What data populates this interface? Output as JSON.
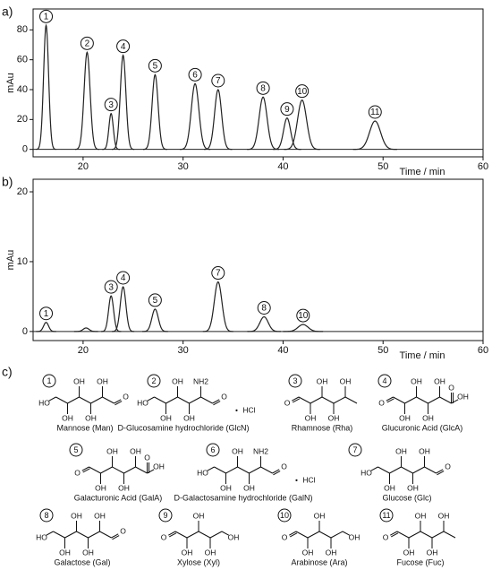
{
  "chart_data": [
    {
      "type": "line",
      "title": "a)",
      "x_label": "Time / min",
      "y_label": "mAu",
      "color": "#222222",
      "xlim": [
        15,
        60
      ],
      "xticks": [
        20,
        30,
        40,
        50,
        60
      ],
      "ylim": [
        -5,
        94
      ],
      "yticks": [
        0,
        20,
        40,
        60,
        80
      ],
      "peaks": {
        "labels": [
          "1",
          "2",
          "3",
          "4",
          "5",
          "6",
          "7",
          "8",
          "9",
          "10",
          "11"
        ],
        "x": [
          16.3,
          20.4,
          22.8,
          24.0,
          27.2,
          31.2,
          33.5,
          38.0,
          40.4,
          41.9,
          49.2
        ],
        "values": [
          83,
          65,
          24,
          63,
          50,
          44,
          40,
          35,
          21,
          33,
          19
        ],
        "widths": [
          0.25,
          0.3,
          0.22,
          0.28,
          0.3,
          0.38,
          0.35,
          0.4,
          0.35,
          0.45,
          0.55
        ]
      }
    },
    {
      "type": "line",
      "title": "b)",
      "x_label": "Time / min",
      "y_label": "mAu",
      "color": "#222222",
      "xlim": [
        15,
        60
      ],
      "xticks": [
        20,
        30,
        40,
        50,
        60
      ],
      "ylim": [
        -1.3,
        21.8
      ],
      "yticks": [
        0,
        10,
        20
      ],
      "peaks": {
        "labels": [
          "1",
          null,
          "3",
          "4",
          "5",
          "7",
          "8",
          "10"
        ],
        "x": [
          16.3,
          20.3,
          22.8,
          24.0,
          27.2,
          33.5,
          38.1,
          42.0
        ],
        "values": [
          1.3,
          0.5,
          5.1,
          6.4,
          3.2,
          7.1,
          2.1,
          1.0
        ],
        "widths": [
          0.25,
          0.3,
          0.25,
          0.28,
          0.32,
          0.38,
          0.42,
          0.5
        ]
      }
    }
  ],
  "structures": {
    "title": "c)",
    "compounds": [
      {
        "number": "1",
        "name": "Mannose (Man)",
        "left": "HO",
        "subs": [
          "OH",
          "OH",
          "OH",
          "OH"
        ],
        "right": [
          "O"
        ]
      },
      {
        "number": "2",
        "name": "D-Glucosamine hydrochloride (GlcN)",
        "left": "HO",
        "subs": [
          "OH",
          "OH",
          "OH",
          "NH2"
        ],
        "right": [
          "O"
        ],
        "salt": [
          "•",
          "HCl"
        ]
      },
      {
        "number": "3",
        "name": "Rhamnose (Rha)",
        "left": "O",
        "subs": [
          "OH",
          "OH",
          "OH",
          "OH"
        ]
      },
      {
        "number": "4",
        "name": "Glucuronic Acid (GlcA)",
        "left": "O",
        "subs": [
          "OH",
          "OH",
          "OH",
          "OH"
        ],
        "right": [
          "O",
          "OH"
        ]
      },
      {
        "number": "5",
        "name": "Galacturonic Acid (GalA)",
        "left": "O",
        "subs": [
          "OH",
          "OH",
          "OH",
          "OH"
        ],
        "right": [
          "O",
          "OH"
        ]
      },
      {
        "number": "6",
        "name": "D-Galactosamine hydrochloride (GalN)",
        "left": "HO",
        "subs": [
          "OH",
          "OH",
          "OH",
          "NH2"
        ],
        "right": [
          "O"
        ],
        "salt": [
          "•",
          "HCl"
        ]
      },
      {
        "number": "7",
        "name": "Glucose (Glc)",
        "left": "HO",
        "subs": [
          "OH",
          "OH",
          "OH",
          "OH"
        ],
        "right": [
          "O"
        ]
      },
      {
        "number": "8",
        "name": "Galactose (Gal)",
        "left": "HO",
        "subs": [
          "OH",
          "OH",
          "OH",
          "OH"
        ],
        "right": [
          "O"
        ]
      },
      {
        "number": "9",
        "name": "Xylose (Xyl)",
        "left": "O",
        "subs": [
          "OH",
          "OH",
          "OH"
        ],
        "right": [
          "OH"
        ]
      },
      {
        "number": "10",
        "name": "Arabinose (Ara)",
        "left": "O",
        "subs": [
          "OH",
          "OH",
          "OH"
        ],
        "right": [
          "OH"
        ]
      },
      {
        "number": "11",
        "name": "Fucose (Fuc)",
        "left": "O",
        "subs": [
          "OH",
          "OH",
          "OH",
          "OH"
        ]
      }
    ]
  }
}
